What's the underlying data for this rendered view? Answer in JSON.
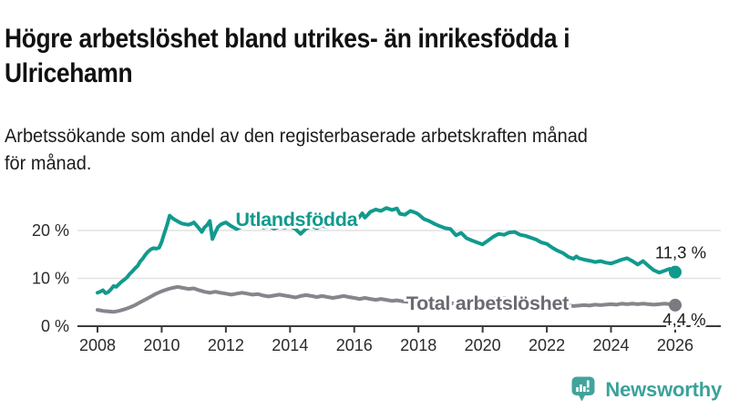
{
  "header": {
    "title_lines": [
      "Högre arbetslöshet bland utrikes- än inrikesfödda i",
      "Ulricehamn"
    ],
    "subtitle_lines": [
      "Arbetssökande som andel av den registerbaserade arbetskraften månad",
      "för månad."
    ]
  },
  "footer": {
    "brand": "Newsworthy",
    "brand_color": "#3aa29b",
    "logo_icon": "bar-chart-speech-bubble-icon",
    "logo_bubble_color": "#43a39c"
  },
  "chart_data": {
    "type": "line",
    "unit": "%",
    "grid": "horizontal",
    "style": {
      "grid_color": "#e2e2e2",
      "axis_color": "#3c3c3c",
      "tick_label_color": "#2b2b2b",
      "value_label_color": "#1a1a1a"
    },
    "x_axis": {
      "ticks": [
        2008,
        2010,
        2012,
        2014,
        2016,
        2018,
        2020,
        2022,
        2024,
        2026
      ],
      "range": [
        2008,
        2026
      ]
    },
    "y_axis": {
      "ticks": [
        {
          "value": 0,
          "label": "0 %"
        },
        {
          "value": 10,
          "label": "10 %"
        },
        {
          "value": 20,
          "label": "20 %"
        }
      ],
      "range": [
        0,
        26
      ]
    },
    "series": [
      {
        "name": "Utlandsfödda",
        "color": "#119a8d",
        "end_label": "11,3 %",
        "end_value": 11.3,
        "end_label_side": "above",
        "inline_label": {
          "x": 2014.2,
          "y": 22.3
        },
        "points": [
          [
            2008.0,
            7.0
          ],
          [
            2008.08,
            7.2
          ],
          [
            2008.17,
            7.5
          ],
          [
            2008.25,
            6.9
          ],
          [
            2008.33,
            7.1
          ],
          [
            2008.42,
            7.7
          ],
          [
            2008.5,
            8.4
          ],
          [
            2008.58,
            8.2
          ],
          [
            2008.67,
            8.8
          ],
          [
            2008.75,
            9.3
          ],
          [
            2008.83,
            9.7
          ],
          [
            2008.92,
            10.2
          ],
          [
            2009.0,
            10.9
          ],
          [
            2009.08,
            11.4
          ],
          [
            2009.17,
            12.1
          ],
          [
            2009.25,
            12.6
          ],
          [
            2009.33,
            13.5
          ],
          [
            2009.42,
            14.2
          ],
          [
            2009.5,
            15.0
          ],
          [
            2009.58,
            15.6
          ],
          [
            2009.67,
            16.1
          ],
          [
            2009.75,
            16.3
          ],
          [
            2009.83,
            16.2
          ],
          [
            2009.92,
            16.4
          ],
          [
            2010.0,
            17.6
          ],
          [
            2010.08,
            19.4
          ],
          [
            2010.17,
            21.2
          ],
          [
            2010.25,
            23.1
          ],
          [
            2010.33,
            22.6
          ],
          [
            2010.42,
            22.2
          ],
          [
            2010.5,
            21.9
          ],
          [
            2010.58,
            21.6
          ],
          [
            2010.67,
            21.4
          ],
          [
            2010.75,
            21.3
          ],
          [
            2010.83,
            21.2
          ],
          [
            2010.92,
            21.4
          ],
          [
            2011.0,
            21.7
          ],
          [
            2011.08,
            21.1
          ],
          [
            2011.17,
            20.4
          ],
          [
            2011.25,
            19.7
          ],
          [
            2011.33,
            20.6
          ],
          [
            2011.42,
            21.2
          ],
          [
            2011.5,
            22.0
          ],
          [
            2011.58,
            18.2
          ],
          [
            2011.67,
            19.6
          ],
          [
            2011.75,
            20.7
          ],
          [
            2011.83,
            21.2
          ],
          [
            2011.92,
            21.5
          ],
          [
            2012.0,
            21.7
          ],
          [
            2012.17,
            20.9
          ],
          [
            2012.33,
            20.3
          ],
          [
            2012.5,
            20.8
          ],
          [
            2012.67,
            21.3
          ],
          [
            2012.83,
            20.9
          ],
          [
            2013.0,
            21.1
          ],
          [
            2013.17,
            20.6
          ],
          [
            2013.33,
            20.9
          ],
          [
            2013.5,
            20.4
          ],
          [
            2013.67,
            20.8
          ],
          [
            2013.83,
            20.6
          ],
          [
            2014.0,
            20.9
          ],
          [
            2014.17,
            20.3
          ],
          [
            2014.33,
            19.3
          ],
          [
            2014.5,
            20.4
          ],
          [
            2014.67,
            20.9
          ],
          [
            2014.83,
            20.5
          ],
          [
            2015.0,
            21.0
          ],
          [
            2015.17,
            20.7
          ],
          [
            2015.33,
            21.3
          ],
          [
            2015.5,
            20.9
          ],
          [
            2015.67,
            21.4
          ],
          [
            2015.83,
            21.1
          ],
          [
            2016.0,
            21.6
          ],
          [
            2016.17,
            22.9
          ],
          [
            2016.25,
            23.6
          ],
          [
            2016.33,
            22.7
          ],
          [
            2016.42,
            23.3
          ],
          [
            2016.5,
            23.9
          ],
          [
            2016.67,
            24.4
          ],
          [
            2016.83,
            24.1
          ],
          [
            2017.0,
            24.7
          ],
          [
            2017.17,
            24.3
          ],
          [
            2017.33,
            24.6
          ],
          [
            2017.42,
            23.5
          ],
          [
            2017.58,
            23.3
          ],
          [
            2017.75,
            24.1
          ],
          [
            2017.92,
            23.7
          ],
          [
            2018.0,
            23.4
          ],
          [
            2018.17,
            22.4
          ],
          [
            2018.33,
            22.0
          ],
          [
            2018.5,
            21.4
          ],
          [
            2018.67,
            20.9
          ],
          [
            2018.83,
            20.5
          ],
          [
            2019.0,
            20.3
          ],
          [
            2019.17,
            19.0
          ],
          [
            2019.33,
            19.5
          ],
          [
            2019.5,
            18.4
          ],
          [
            2019.67,
            17.9
          ],
          [
            2019.83,
            17.5
          ],
          [
            2020.0,
            17.1
          ],
          [
            2020.17,
            17.9
          ],
          [
            2020.33,
            18.7
          ],
          [
            2020.5,
            19.3
          ],
          [
            2020.67,
            19.1
          ],
          [
            2020.83,
            19.6
          ],
          [
            2021.0,
            19.7
          ],
          [
            2021.17,
            19.1
          ],
          [
            2021.33,
            18.9
          ],
          [
            2021.5,
            18.5
          ],
          [
            2021.67,
            18.1
          ],
          [
            2021.83,
            17.5
          ],
          [
            2022.0,
            17.2
          ],
          [
            2022.17,
            16.4
          ],
          [
            2022.33,
            15.8
          ],
          [
            2022.5,
            15.3
          ],
          [
            2022.67,
            14.5
          ],
          [
            2022.83,
            14.1
          ],
          [
            2022.92,
            14.6
          ],
          [
            2023.0,
            14.2
          ],
          [
            2023.17,
            13.9
          ],
          [
            2023.33,
            13.7
          ],
          [
            2023.5,
            13.4
          ],
          [
            2023.67,
            13.6
          ],
          [
            2023.83,
            13.3
          ],
          [
            2024.0,
            13.1
          ],
          [
            2024.17,
            13.5
          ],
          [
            2024.33,
            13.9
          ],
          [
            2024.5,
            14.2
          ],
          [
            2024.67,
            13.6
          ],
          [
            2024.83,
            12.9
          ],
          [
            2025.0,
            13.6
          ],
          [
            2025.17,
            12.6
          ],
          [
            2025.33,
            11.7
          ],
          [
            2025.5,
            11.2
          ],
          [
            2025.67,
            11.6
          ],
          [
            2025.83,
            12.0
          ],
          [
            2025.92,
            11.7
          ],
          [
            2026.0,
            11.3
          ]
        ]
      },
      {
        "name": "Total arbetslöshet",
        "color": "#85858b",
        "label_color": "#6a6a72",
        "dot_color": "#7a7a81",
        "end_label": "4,4 %",
        "end_value": 4.4,
        "end_label_side": "below",
        "inline_label": {
          "x": 2020.15,
          "y": 4.76
        },
        "points": [
          [
            2008.0,
            3.4
          ],
          [
            2008.17,
            3.2
          ],
          [
            2008.33,
            3.1
          ],
          [
            2008.5,
            3.0
          ],
          [
            2008.67,
            3.2
          ],
          [
            2008.83,
            3.5
          ],
          [
            2009.0,
            3.9
          ],
          [
            2009.17,
            4.4
          ],
          [
            2009.33,
            5.0
          ],
          [
            2009.5,
            5.6
          ],
          [
            2009.67,
            6.2
          ],
          [
            2009.83,
            6.8
          ],
          [
            2010.0,
            7.3
          ],
          [
            2010.17,
            7.7
          ],
          [
            2010.33,
            8.0
          ],
          [
            2010.5,
            8.2
          ],
          [
            2010.67,
            8.0
          ],
          [
            2010.83,
            7.8
          ],
          [
            2011.0,
            7.9
          ],
          [
            2011.17,
            7.5
          ],
          [
            2011.33,
            7.2
          ],
          [
            2011.5,
            7.0
          ],
          [
            2011.67,
            7.2
          ],
          [
            2011.83,
            7.0
          ],
          [
            2012.0,
            6.8
          ],
          [
            2012.17,
            6.6
          ],
          [
            2012.33,
            6.8
          ],
          [
            2012.5,
            7.0
          ],
          [
            2012.67,
            6.8
          ],
          [
            2012.83,
            6.6
          ],
          [
            2013.0,
            6.7
          ],
          [
            2013.17,
            6.4
          ],
          [
            2013.33,
            6.2
          ],
          [
            2013.5,
            6.4
          ],
          [
            2013.67,
            6.6
          ],
          [
            2013.83,
            6.4
          ],
          [
            2014.0,
            6.2
          ],
          [
            2014.17,
            6.0
          ],
          [
            2014.33,
            6.3
          ],
          [
            2014.5,
            6.5
          ],
          [
            2014.67,
            6.3
          ],
          [
            2014.83,
            6.1
          ],
          [
            2015.0,
            6.3
          ],
          [
            2015.17,
            6.1
          ],
          [
            2015.33,
            5.9
          ],
          [
            2015.5,
            6.1
          ],
          [
            2015.67,
            6.3
          ],
          [
            2015.83,
            6.1
          ],
          [
            2016.0,
            5.9
          ],
          [
            2016.17,
            5.7
          ],
          [
            2016.33,
            5.9
          ],
          [
            2016.5,
            5.7
          ],
          [
            2016.67,
            5.5
          ],
          [
            2016.83,
            5.7
          ],
          [
            2017.0,
            5.5
          ],
          [
            2017.17,
            5.3
          ],
          [
            2017.33,
            5.4
          ],
          [
            2017.5,
            5.2
          ],
          [
            2017.67,
            5.1
          ],
          [
            2017.83,
            5.2
          ],
          [
            2018.0,
            5.0
          ],
          [
            2018.25,
            4.9
          ],
          [
            2018.5,
            4.8
          ],
          [
            2018.75,
            4.9
          ],
          [
            2019.0,
            4.8
          ],
          [
            2019.25,
            4.7
          ],
          [
            2019.5,
            4.7
          ],
          [
            2019.75,
            4.9
          ],
          [
            2020.0,
            5.1
          ],
          [
            2020.25,
            5.7
          ],
          [
            2020.5,
            6.0
          ],
          [
            2020.75,
            5.8
          ],
          [
            2021.0,
            5.6
          ],
          [
            2021.25,
            5.4
          ],
          [
            2021.5,
            5.2
          ],
          [
            2021.75,
            5.0
          ],
          [
            2022.0,
            4.8
          ],
          [
            2022.17,
            4.6
          ],
          [
            2022.33,
            4.4
          ],
          [
            2022.5,
            4.5
          ],
          [
            2022.67,
            4.3
          ],
          [
            2022.83,
            4.2
          ],
          [
            2023.0,
            4.3
          ],
          [
            2023.17,
            4.4
          ],
          [
            2023.33,
            4.3
          ],
          [
            2023.5,
            4.5
          ],
          [
            2023.67,
            4.4
          ],
          [
            2023.83,
            4.5
          ],
          [
            2024.0,
            4.6
          ],
          [
            2024.17,
            4.5
          ],
          [
            2024.33,
            4.7
          ],
          [
            2024.5,
            4.6
          ],
          [
            2024.67,
            4.7
          ],
          [
            2024.83,
            4.6
          ],
          [
            2025.0,
            4.7
          ],
          [
            2025.17,
            4.6
          ],
          [
            2025.33,
            4.5
          ],
          [
            2025.5,
            4.6
          ],
          [
            2025.67,
            4.7
          ],
          [
            2025.83,
            4.6
          ],
          [
            2026.0,
            4.4
          ]
        ]
      }
    ]
  }
}
